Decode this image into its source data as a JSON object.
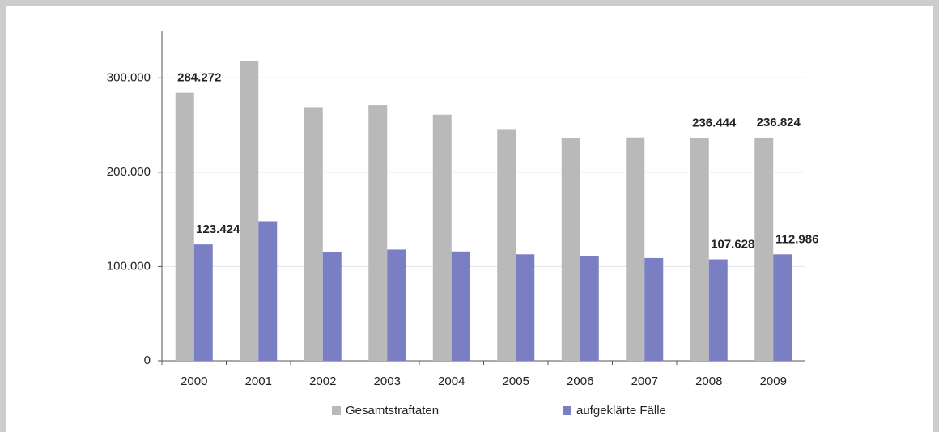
{
  "chart_data": {
    "type": "bar",
    "categories": [
      "2000",
      "2001",
      "2002",
      "2003",
      "2004",
      "2005",
      "2006",
      "2007",
      "2008",
      "2009"
    ],
    "series": [
      {
        "name": "Gesamtstraftaten",
        "color": "#b9b9b9",
        "values": [
          284272,
          318000,
          269000,
          271000,
          261000,
          245000,
          236000,
          237000,
          236444,
          236824
        ],
        "value_labels": [
          "284.272",
          null,
          null,
          null,
          null,
          null,
          null,
          null,
          "236.444",
          "236.824"
        ]
      },
      {
        "name": "aufgeklärte Fälle",
        "color": "#7a7ec3",
        "values": [
          123424,
          148000,
          115000,
          118000,
          116000,
          113000,
          111000,
          109000,
          107628,
          112986
        ],
        "value_labels": [
          "123.424",
          null,
          null,
          null,
          null,
          null,
          null,
          null,
          "107.628",
          "112.986"
        ]
      }
    ],
    "ylim": [
      0,
      350000
    ],
    "yticks": [
      0,
      {
        "value": 100000,
        "label": "100.000"
      },
      {
        "value": 200000,
        "label": "200.000"
      },
      {
        "value": 300000,
        "label": "300.000"
      }
    ],
    "grid": true
  }
}
